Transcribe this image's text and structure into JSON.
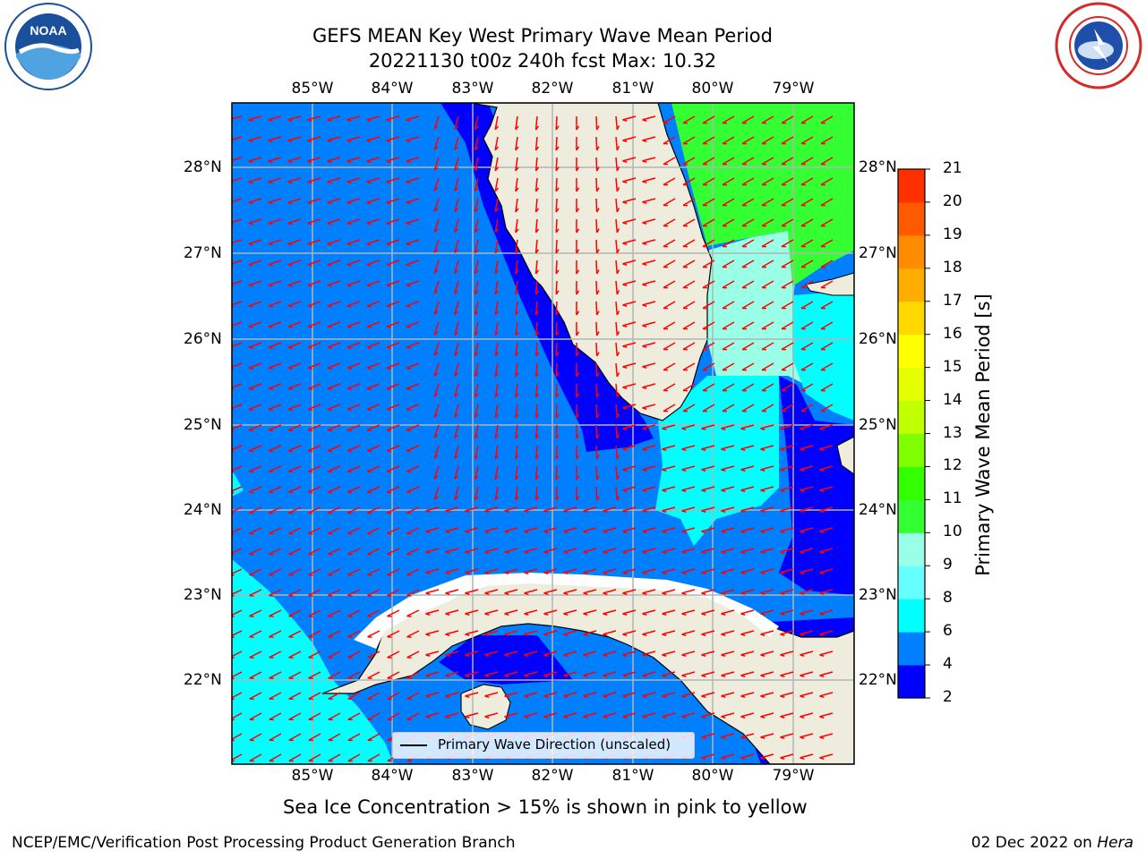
{
  "title": {
    "line1": "GEFS MEAN Key West Primary Wave Mean Period",
    "line2": "20221130 t00z 240h fcst   Max: 10.32"
  },
  "logos": {
    "left": "noaa-logo",
    "right": "nws-logo"
  },
  "map": {
    "lon_labels": [
      "85°W",
      "84°W",
      "83°W",
      "82°W",
      "81°W",
      "80°W",
      "79°W"
    ],
    "lat_labels": [
      "28°N",
      "27°N",
      "26°N",
      "25°N",
      "24°N",
      "23°N",
      "22°N"
    ],
    "extent": {
      "lon": [
        -86.0,
        -78.3
      ],
      "lat": [
        21.1,
        28.75
      ]
    },
    "gridlines": true,
    "colors": {
      "land": "#eeecdc",
      "coast": "#000000",
      "grid": "#b4b4b4",
      "arrow": "#ff0000"
    }
  },
  "colorbar": {
    "label": "Primary Wave Mean Period [s]",
    "ticks": [
      "21",
      "20",
      "19",
      "18",
      "17",
      "16",
      "15",
      "14",
      "13",
      "12",
      "11",
      "10",
      "9",
      "8",
      "6",
      "4",
      "2"
    ],
    "colors": [
      "#0000ff",
      "#0080ff",
      "#00ffff",
      "#66ffff",
      "#99ffe6",
      "#33ff33",
      "#33ff00",
      "#80ff00",
      "#c0ff00",
      "#e6ff00",
      "#ffff00",
      "#ffd800",
      "#ffae00",
      "#ff8c00",
      "#ff5a00",
      "#ff3000",
      "#ff0000"
    ]
  },
  "legend": {
    "label": "Primary Wave Direction (unscaled)"
  },
  "note": "Sea Ice Concentration > 15% is shown in pink to yellow",
  "footer": {
    "left": "NCEP/EMC/Verification Post Processing Product Generation Branch",
    "right_date": "02 Dec 2022 on",
    "right_host": "Hera"
  }
}
